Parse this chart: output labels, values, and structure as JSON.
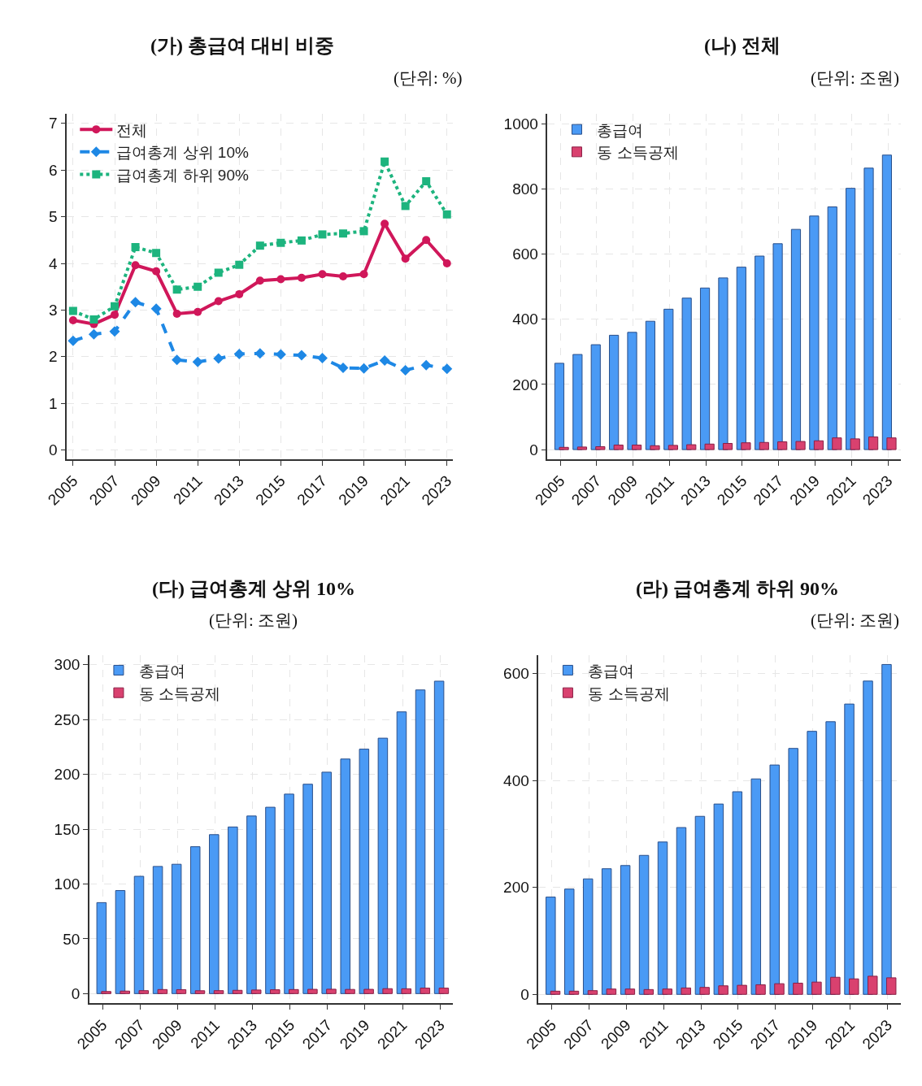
{
  "chart_data": [
    {
      "type": "line",
      "title": "(가) 총급여 대비 비중",
      "annotations": [
        "(단위: %)"
      ],
      "x": [
        2005,
        2006,
        2007,
        2008,
        2009,
        2010,
        2011,
        2012,
        2013,
        2014,
        2015,
        2016,
        2017,
        2018,
        2019,
        2020,
        2021,
        2022,
        2023
      ],
      "xlim": [
        2004.7,
        2023.3
      ],
      "xticks": [
        2005,
        2007,
        2009,
        2011,
        2013,
        2015,
        2017,
        2019,
        2021,
        2023
      ],
      "ylim": [
        -0.2,
        7.2
      ],
      "yticks": [
        0,
        1,
        2,
        3,
        4,
        5,
        6,
        7
      ],
      "grid": true,
      "legend": "top left",
      "series": [
        {
          "name": "전체",
          "color": "#d0175a",
          "marker": "circle",
          "line_style": "solid",
          "values": [
            2.78,
            2.7,
            2.9,
            3.96,
            3.83,
            2.92,
            2.96,
            3.19,
            3.34,
            3.63,
            3.66,
            3.69,
            3.77,
            3.72,
            3.77,
            4.85,
            4.1,
            4.5,
            4.0
          ]
        },
        {
          "name": "급여총계 상위 10%",
          "color": "#1e88e5",
          "marker": "diamond",
          "line_style": "dashed",
          "values": [
            2.34,
            2.48,
            2.54,
            3.17,
            3.03,
            1.93,
            1.89,
            1.96,
            2.06,
            2.07,
            2.05,
            2.03,
            1.97,
            1.76,
            1.75,
            1.92,
            1.71,
            1.82,
            1.74
          ]
        },
        {
          "name": "급여총계 하위 90%",
          "color": "#1db47e",
          "marker": "square",
          "line_style": "dotted",
          "values": [
            2.98,
            2.8,
            3.08,
            4.35,
            4.22,
            3.44,
            3.5,
            3.8,
            3.97,
            4.38,
            4.44,
            4.49,
            4.62,
            4.64,
            4.69,
            6.18,
            5.23,
            5.76,
            5.05
          ]
        }
      ]
    },
    {
      "type": "bar",
      "title": "(나) 전체",
      "annotations": [
        "(단위: 조원)"
      ],
      "x": [
        2005,
        2006,
        2007,
        2008,
        2009,
        2010,
        2011,
        2012,
        2013,
        2014,
        2015,
        2016,
        2017,
        2018,
        2019,
        2020,
        2021,
        2022,
        2023
      ],
      "xlim": [
        2004.3,
        2023.7
      ],
      "xticks": [
        2005,
        2007,
        2009,
        2011,
        2013,
        2015,
        2017,
        2019,
        2021,
        2023
      ],
      "ylim": [
        -30,
        1030
      ],
      "yticks": [
        0,
        200,
        400,
        600,
        800,
        1000
      ],
      "grid": true,
      "legend": "top left",
      "series": [
        {
          "name": "총급여",
          "color": "#4a9af5",
          "values": [
            265,
            292,
            322,
            351,
            360,
            394,
            431,
            465,
            496,
            527,
            560,
            594,
            632,
            676,
            717,
            745,
            802,
            864,
            904
          ]
        },
        {
          "name": "동 소득공제",
          "color": "#d9416f",
          "values": [
            7,
            8,
            9,
            14,
            14,
            12,
            13,
            15,
            17,
            19,
            21,
            22,
            24,
            25,
            27,
            36,
            33,
            39,
            36
          ]
        }
      ]
    },
    {
      "type": "bar",
      "title": "(다) 급여총계 상위 10%",
      "annotations": [
        "(단위: 조원)"
      ],
      "x": [
        2005,
        2006,
        2007,
        2008,
        2009,
        2010,
        2011,
        2012,
        2013,
        2014,
        2015,
        2016,
        2017,
        2018,
        2019,
        2020,
        2021,
        2022,
        2023
      ],
      "xlim": [
        2004.3,
        2023.7
      ],
      "xticks": [
        2005,
        2007,
        2009,
        2011,
        2013,
        2015,
        2017,
        2019,
        2021,
        2023
      ],
      "ylim": [
        -9,
        309
      ],
      "yticks": [
        0,
        50,
        100,
        150,
        200,
        250,
        300
      ],
      "grid": true,
      "legend": "top left",
      "series": [
        {
          "name": "총급여",
          "color": "#4a9af5",
          "values": [
            83,
            94,
            107,
            116,
            118,
            134,
            145,
            152,
            162,
            170,
            182,
            191,
            202,
            214,
            223,
            233,
            257,
            277,
            285
          ]
        },
        {
          "name": "동 소득공제",
          "color": "#d9416f",
          "values": [
            1.9,
            2.3,
            2.7,
            3.7,
            3.6,
            2.6,
            2.7,
            3.0,
            3.3,
            3.5,
            3.7,
            3.9,
            4.0,
            3.8,
            3.9,
            4.5,
            4.4,
            5.0,
            5.0
          ]
        }
      ]
    },
    {
      "type": "bar",
      "title": "(라) 급여총계 하위 90%",
      "annotations": [
        "(단위: 조원)"
      ],
      "x": [
        2005,
        2006,
        2007,
        2008,
        2009,
        2010,
        2011,
        2012,
        2013,
        2014,
        2015,
        2016,
        2017,
        2018,
        2019,
        2020,
        2021,
        2022,
        2023
      ],
      "xlim": [
        2004.3,
        2023.7
      ],
      "xticks": [
        2005,
        2007,
        2009,
        2011,
        2013,
        2015,
        2017,
        2019,
        2021,
        2023
      ],
      "ylim": [
        -17,
        635
      ],
      "yticks": [
        0,
        200,
        400,
        600
      ],
      "grid": true,
      "legend": "top left",
      "series": [
        {
          "name": "총급여",
          "color": "#4a9af5",
          "values": [
            182,
            197,
            216,
            235,
            241,
            260,
            285,
            312,
            333,
            356,
            379,
            403,
            429,
            460,
            492,
            510,
            543,
            586,
            617
          ]
        },
        {
          "name": "동 소득공제",
          "color": "#d9416f",
          "values": [
            6,
            6,
            7,
            10,
            10,
            9,
            10,
            12,
            13,
            16,
            17,
            18,
            20,
            21,
            23,
            32,
            29,
            34,
            31
          ]
        }
      ]
    }
  ]
}
